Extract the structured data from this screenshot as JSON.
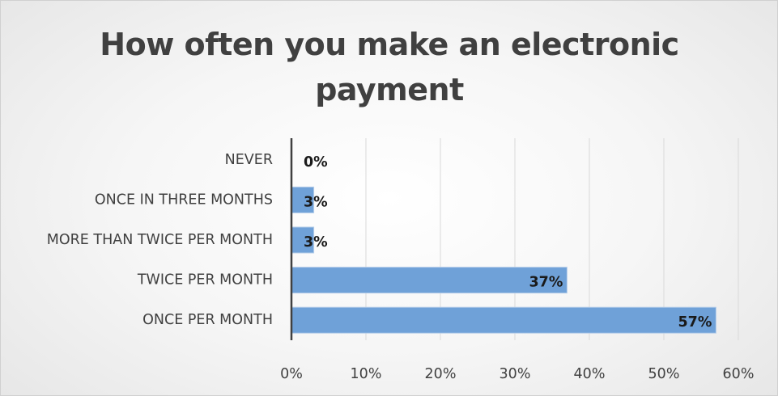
{
  "chart_data": {
    "type": "bar",
    "orientation": "horizontal",
    "title": "How often you make an electronic payment",
    "categories": [
      "NEVER",
      "ONCE IN THREE MONTHS",
      "MORE THAN TWICE PER MONTH",
      "TWICE PER MONTH",
      "ONCE PER MONTH"
    ],
    "values": [
      0,
      3,
      3,
      37,
      57
    ],
    "data_labels": [
      "0%",
      "3%",
      "3%",
      "37%",
      "57%"
    ],
    "xlim": [
      0,
      60
    ],
    "x_ticks": [
      0,
      10,
      20,
      30,
      40,
      50,
      60
    ],
    "x_tick_labels": [
      "0%",
      "10%",
      "20%",
      "30%",
      "40%",
      "50%",
      "60%"
    ],
    "xlabel": "",
    "ylabel": "",
    "grid": true,
    "legend": "none",
    "colors": {
      "bar_fill": "#6fa1d8",
      "bar_stroke": "#b5cde9",
      "grid": "#d9d9d9",
      "axis": "#404040",
      "text": "#404040"
    }
  }
}
